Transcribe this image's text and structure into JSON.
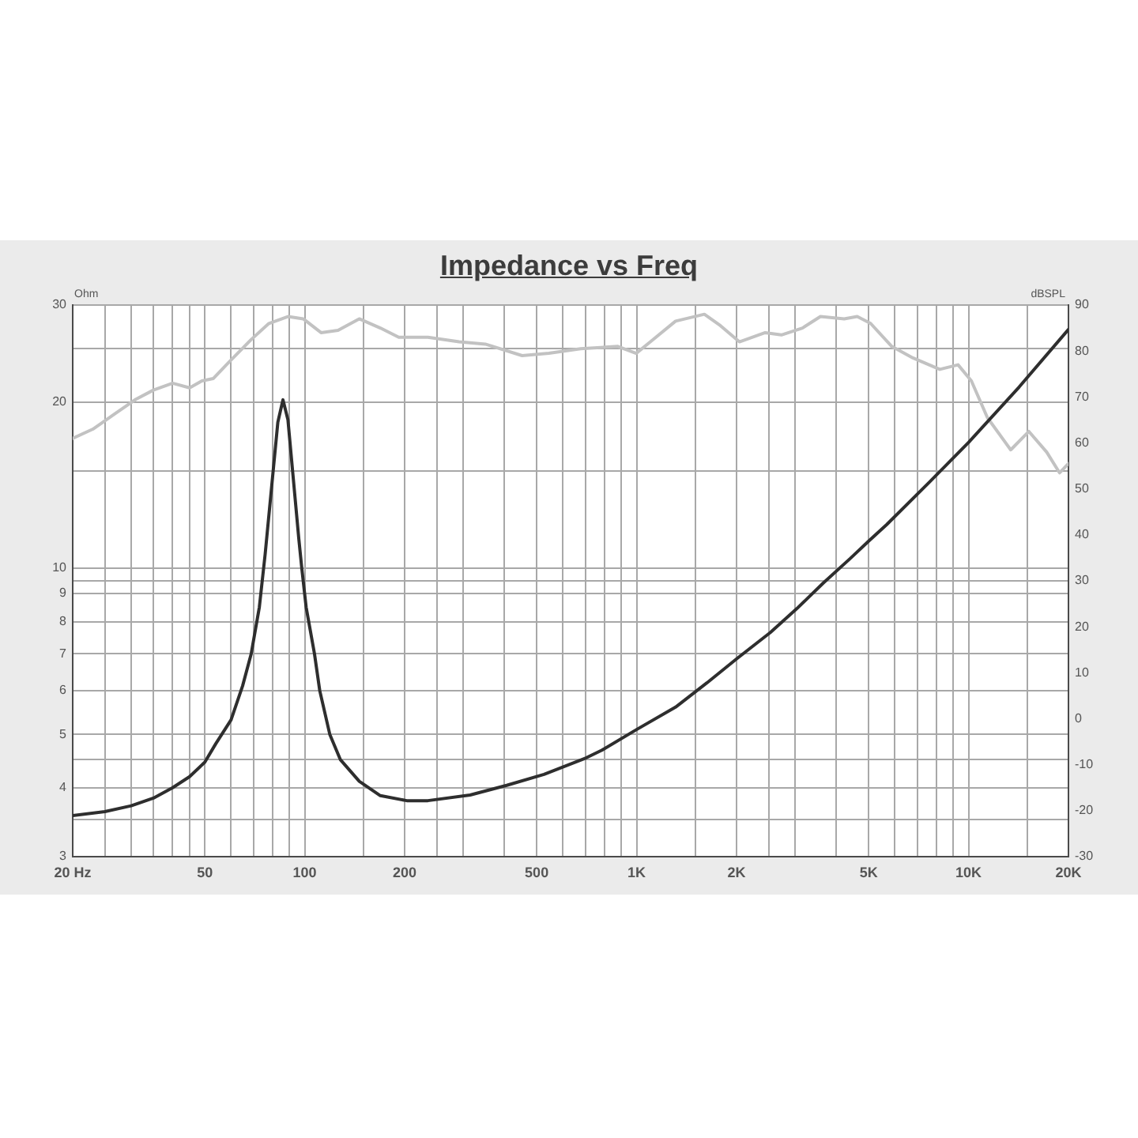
{
  "chart_data": {
    "type": "line",
    "title": "Impedance vs Freq",
    "ylabel": "Ohm",
    "y2label": "dBSPL",
    "log": "xy",
    "grid": true,
    "xlim": [
      20,
      20000
    ],
    "xticks": [
      {
        "value": 20,
        "label": "20 Hz"
      },
      {
        "value": 25,
        "label": null
      },
      {
        "value": 30,
        "label": null
      },
      {
        "value": 35,
        "label": null
      },
      {
        "value": 40,
        "label": null
      },
      {
        "value": 45,
        "label": null
      },
      50,
      {
        "value": 60,
        "label": null
      },
      {
        "value": 70,
        "label": null
      },
      {
        "value": 80,
        "label": null
      },
      {
        "value": 90,
        "label": null
      },
      100,
      {
        "value": 150,
        "label": null
      },
      200,
      {
        "value": 250,
        "label": null
      },
      {
        "value": 300,
        "label": null
      },
      {
        "value": 400,
        "label": null
      },
      500,
      {
        "value": 600,
        "label": null
      },
      {
        "value": 700,
        "label": null
      },
      {
        "value": 800,
        "label": null
      },
      {
        "value": 900,
        "label": null
      },
      {
        "value": 1000,
        "label": "1K"
      },
      {
        "value": 1500,
        "label": null
      },
      {
        "value": 2000,
        "label": "2K"
      },
      {
        "value": 2500,
        "label": null
      },
      {
        "value": 3000,
        "label": null
      },
      {
        "value": 4000,
        "label": null
      },
      {
        "value": 5000,
        "label": "5K"
      },
      {
        "value": 6000,
        "label": null
      },
      {
        "value": 7000,
        "label": null
      },
      {
        "value": 8000,
        "label": null
      },
      {
        "value": 9000,
        "label": null
      },
      {
        "value": 10000,
        "label": "10K"
      },
      {
        "value": 15000,
        "label": null
      },
      {
        "value": 20000,
        "label": "20K"
      }
    ],
    "ylim": [
      3,
      30
    ],
    "yticks": [
      3,
      {
        "value": 3.5,
        "label": null
      },
      4,
      {
        "value": 4.5,
        "label": null
      },
      5,
      6,
      7,
      8,
      9,
      {
        "value": 9.5,
        "label": null
      },
      10,
      {
        "value": 15,
        "label": null
      },
      20,
      {
        "value": 25,
        "label": null
      },
      30
    ],
    "y2lim": [
      -30,
      90
    ],
    "y2ticks": [
      -30,
      -20,
      -10,
      0,
      10,
      20,
      30,
      40,
      50,
      60,
      70,
      80,
      90
    ],
    "series": [
      {
        "color": "#2e2e2e",
        "x": [
          20,
          25,
          30,
          35,
          40,
          45,
          50,
          54,
          60,
          65,
          69,
          73,
          76,
          83,
          86,
          89,
          96,
          98,
          101,
          107,
          111,
          119,
          128,
          146,
          169,
          203,
          235,
          315,
          406,
          526,
          704,
          786,
          1000,
          1310,
          1630,
          2000,
          2530,
          3040,
          3650,
          4390,
          5000,
          5670,
          7600,
          10000,
          14200,
          20000
        ],
        "values": [
          3.56,
          3.62,
          3.71,
          3.83,
          4.0,
          4.19,
          4.45,
          4.81,
          5.31,
          6.12,
          7.0,
          8.5,
          10.6,
          18.4,
          20.2,
          18.6,
          11.3,
          10.0,
          8.5,
          7.0,
          6.0,
          5.0,
          4.5,
          4.11,
          3.87,
          3.79,
          3.79,
          3.88,
          4.04,
          4.23,
          4.53,
          4.68,
          5.1,
          5.6,
          6.2,
          6.85,
          7.65,
          8.45,
          9.4,
          10.4,
          11.2,
          12.0,
          14.3,
          16.9,
          21.3,
          27.1
        ]
      },
      {
        "color": "#c2c2c2",
        "axis": "y2",
        "x": [
          20,
          23,
          27,
          31,
          35,
          40,
          45,
          49,
          53,
          59,
          69,
          78,
          89,
          99,
          112,
          126,
          146,
          169,
          192,
          235,
          292,
          350,
          452,
          544,
          678,
          878,
          997,
          1100,
          1310,
          1600,
          1790,
          2040,
          2440,
          2730,
          3160,
          3580,
          4220,
          4620,
          5070,
          5870,
          6800,
          8190,
          9300,
          10200,
          11400,
          13400,
          15200,
          17200,
          18800,
          20000
        ],
        "values": [
          61,
          63,
          66.5,
          69.5,
          71.5,
          73,
          72,
          73.5,
          74,
          77.5,
          82.5,
          86,
          87.5,
          87,
          84,
          84.5,
          87,
          85,
          83,
          83,
          82,
          81.5,
          79,
          79.5,
          80.5,
          81,
          79.5,
          82,
          86.5,
          88,
          85.5,
          82,
          84,
          83.5,
          85,
          87.5,
          87,
          87.5,
          86,
          81,
          78.5,
          76,
          77,
          73.5,
          65.5,
          58.5,
          62.5,
          58,
          53.5,
          55.5
        ]
      }
    ]
  }
}
